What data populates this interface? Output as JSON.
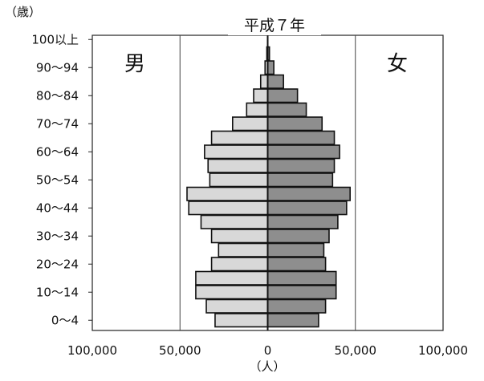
{
  "chart_data": {
    "type": "bar",
    "subtype": "population-pyramid",
    "title": "平成７年",
    "y_unit_label": "（歳）",
    "x_unit_label": "（人）",
    "left_label": "男",
    "right_label": "女",
    "age_tick_labels": [
      "0～4",
      "10～14",
      "20～24",
      "30～34",
      "40～44",
      "50～54",
      "60～64",
      "70～74",
      "80～84",
      "90～94",
      "100以上"
    ],
    "x_tick_labels": [
      "100,000",
      "50,000",
      "0",
      "50,000",
      "100,000"
    ],
    "xlim": [
      -100000,
      100000
    ],
    "categories": [
      "0～4",
      "5～9",
      "10～14",
      "15～19",
      "20～24",
      "25～29",
      "30～34",
      "35～39",
      "40～44",
      "45～49",
      "50～54",
      "55～59",
      "60～64",
      "65～69",
      "70～74",
      "75～79",
      "80～84",
      "85～89",
      "90～94",
      "95～99",
      "100以上"
    ],
    "series": [
      {
        "name": "男",
        "side": "left",
        "color": "#d8d8d8",
        "values": [
          30000,
          35000,
          41000,
          41000,
          32000,
          28000,
          32000,
          38000,
          45000,
          46000,
          33000,
          34000,
          36000,
          32000,
          20000,
          12000,
          8000,
          4000,
          1500,
          500,
          0
        ]
      },
      {
        "name": "女",
        "side": "right",
        "color": "#8e8e8e",
        "values": [
          29000,
          33000,
          39000,
          39000,
          33000,
          32000,
          35000,
          40000,
          45000,
          47000,
          37000,
          38000,
          41000,
          38000,
          31000,
          22000,
          17000,
          9000,
          3500,
          1000,
          0
        ]
      }
    ],
    "gridlines_x": [
      -50000,
      50000
    ],
    "grid": true
  }
}
